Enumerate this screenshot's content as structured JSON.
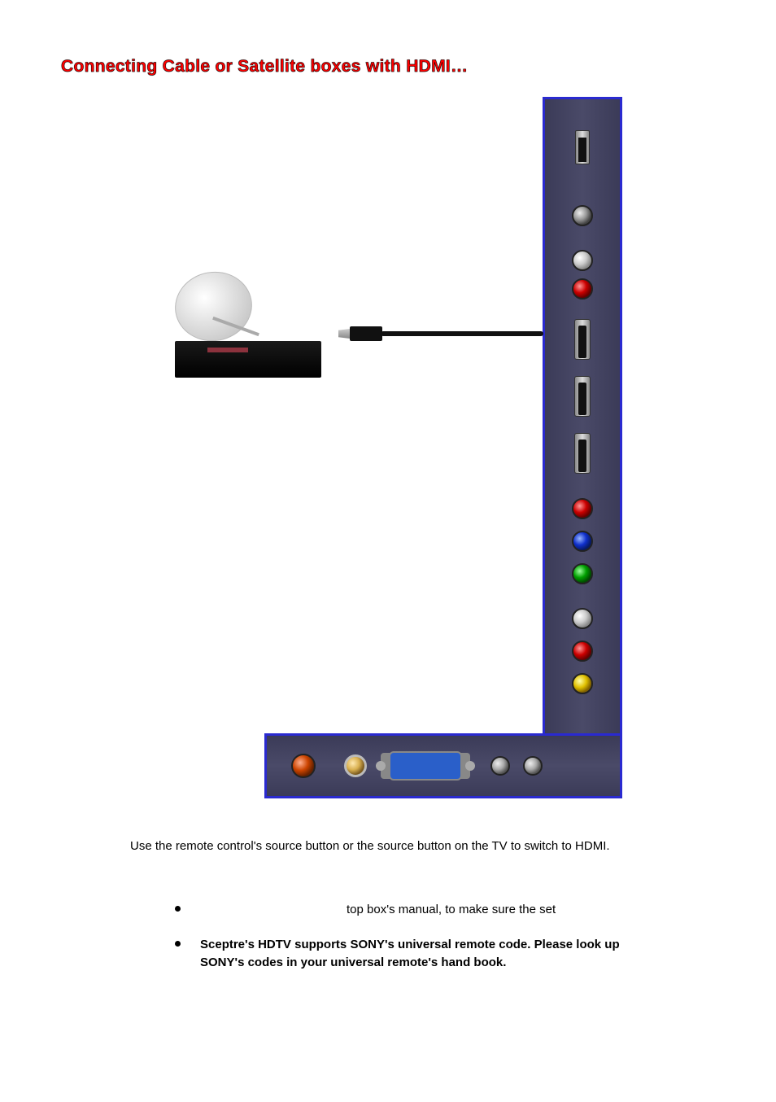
{
  "title": "Connecting Cable or Satellite boxes with HDMI…",
  "instruction": "Use the remote control's source button or the source button on the TV to switch to HDMI.",
  "bullets": {
    "b1": "top box's manual, to make sure the set",
    "b2": "Sceptre's HDTV supports SONY's universal remote code. Please look up SONY's codes in your universal remote's hand book."
  },
  "colors": {
    "title": "#ff0000",
    "panel_border": "#2a2ad0",
    "panel_bg": "#44445f",
    "vga": "#2a5fc9",
    "jack_red": "#cc0000",
    "jack_blue": "#1030cc",
    "jack_green": "#00a000",
    "jack_yellow": "#e0c000",
    "jack_white": "#dddddd"
  },
  "diagram": {
    "device_type": "cable/satellite set-top box with satellite dish",
    "cable_type": "HDMI",
    "panel_shape": "L-shaped TV rear connector panel",
    "vertical_ports_top_to_bottom": [
      "USB",
      "headphone-jack",
      "audio-L-white",
      "audio-R-red",
      "HDMI-1",
      "HDMI-2",
      "HDMI-3",
      "component-Pr-red",
      "component-Pb-blue",
      "component-Y-green",
      "audio-L-white",
      "audio-R-red",
      "composite-video-yellow"
    ],
    "horizontal_ports_left_to_right": [
      "SPDIF-coax-orange",
      "RF-antenna-coax",
      "VGA",
      "audio-in-1",
      "audio-in-2"
    ],
    "hdmi_cable_connects_to": "HDMI-1"
  }
}
